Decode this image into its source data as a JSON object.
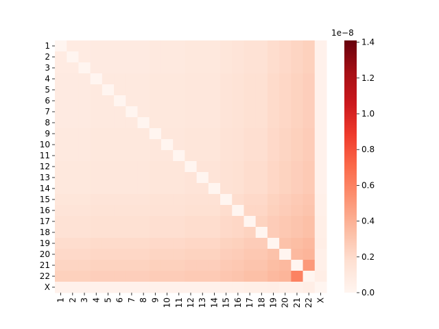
{
  "chart_data": {
    "type": "heatmap",
    "xcategories": [
      "1",
      "2",
      "3",
      "4",
      "5",
      "6",
      "7",
      "8",
      "9",
      "10",
      "11",
      "12",
      "13",
      "14",
      "15",
      "16",
      "17",
      "18",
      "19",
      "20",
      "21",
      "22",
      "X"
    ],
    "ycategories": [
      "1",
      "2",
      "3",
      "4",
      "5",
      "6",
      "7",
      "8",
      "9",
      "10",
      "11",
      "12",
      "13",
      "14",
      "15",
      "16",
      "17",
      "18",
      "19",
      "20",
      "21",
      "22",
      "X"
    ],
    "values": [
      [
        0,
        0.08,
        0.08,
        0.09,
        0.09,
        0.09,
        0.09,
        0.09,
        0.1,
        0.1,
        0.1,
        0.11,
        0.11,
        0.11,
        0.13,
        0.14,
        0.16,
        0.16,
        0.19,
        0.21,
        0.23,
        0.25,
        0.03
      ],
      [
        0.08,
        0,
        0.08,
        0.09,
        0.09,
        0.09,
        0.09,
        0.09,
        0.1,
        0.1,
        0.1,
        0.11,
        0.11,
        0.11,
        0.13,
        0.14,
        0.16,
        0.16,
        0.19,
        0.21,
        0.23,
        0.25,
        0.03
      ],
      [
        0.08,
        0.08,
        0,
        0.09,
        0.09,
        0.09,
        0.09,
        0.09,
        0.1,
        0.1,
        0.1,
        0.11,
        0.11,
        0.11,
        0.13,
        0.14,
        0.16,
        0.16,
        0.19,
        0.21,
        0.23,
        0.25,
        0.03
      ],
      [
        0.09,
        0.09,
        0.09,
        0,
        0.1,
        0.1,
        0.1,
        0.1,
        0.11,
        0.11,
        0.11,
        0.12,
        0.12,
        0.12,
        0.14,
        0.15,
        0.17,
        0.17,
        0.2,
        0.22,
        0.24,
        0.26,
        0.03
      ],
      [
        0.09,
        0.09,
        0.09,
        0.1,
        0,
        0.1,
        0.1,
        0.1,
        0.11,
        0.11,
        0.11,
        0.12,
        0.12,
        0.12,
        0.14,
        0.15,
        0.17,
        0.17,
        0.2,
        0.22,
        0.24,
        0.26,
        0.03
      ],
      [
        0.09,
        0.09,
        0.09,
        0.1,
        0.1,
        0,
        0.1,
        0.1,
        0.11,
        0.11,
        0.11,
        0.12,
        0.12,
        0.12,
        0.14,
        0.15,
        0.17,
        0.17,
        0.2,
        0.22,
        0.24,
        0.26,
        0.03
      ],
      [
        0.09,
        0.09,
        0.09,
        0.1,
        0.1,
        0.1,
        0,
        0.1,
        0.11,
        0.11,
        0.11,
        0.12,
        0.12,
        0.12,
        0.14,
        0.15,
        0.17,
        0.17,
        0.2,
        0.22,
        0.24,
        0.26,
        0.03
      ],
      [
        0.09,
        0.09,
        0.09,
        0.1,
        0.1,
        0.1,
        0.1,
        0,
        0.11,
        0.11,
        0.11,
        0.12,
        0.12,
        0.12,
        0.14,
        0.15,
        0.17,
        0.17,
        0.2,
        0.22,
        0.24,
        0.26,
        0.03
      ],
      [
        0.1,
        0.1,
        0.1,
        0.11,
        0.11,
        0.11,
        0.11,
        0.11,
        0,
        0.12,
        0.12,
        0.13,
        0.13,
        0.13,
        0.15,
        0.16,
        0.18,
        0.18,
        0.21,
        0.23,
        0.25,
        0.27,
        0.03
      ],
      [
        0.1,
        0.1,
        0.1,
        0.11,
        0.11,
        0.11,
        0.11,
        0.11,
        0.12,
        0,
        0.12,
        0.13,
        0.13,
        0.13,
        0.15,
        0.16,
        0.18,
        0.18,
        0.21,
        0.23,
        0.25,
        0.27,
        0.03
      ],
      [
        0.1,
        0.1,
        0.1,
        0.11,
        0.11,
        0.11,
        0.11,
        0.11,
        0.12,
        0.12,
        0,
        0.13,
        0.13,
        0.13,
        0.15,
        0.16,
        0.18,
        0.18,
        0.21,
        0.23,
        0.25,
        0.27,
        0.03
      ],
      [
        0.11,
        0.11,
        0.11,
        0.12,
        0.12,
        0.12,
        0.12,
        0.12,
        0.13,
        0.13,
        0.13,
        0,
        0.14,
        0.14,
        0.16,
        0.17,
        0.19,
        0.19,
        0.22,
        0.24,
        0.26,
        0.28,
        0.03
      ],
      [
        0.11,
        0.11,
        0.11,
        0.12,
        0.12,
        0.12,
        0.12,
        0.12,
        0.13,
        0.13,
        0.13,
        0.14,
        0,
        0.14,
        0.16,
        0.17,
        0.19,
        0.19,
        0.22,
        0.24,
        0.26,
        0.28,
        0.03
      ],
      [
        0.11,
        0.11,
        0.11,
        0.12,
        0.12,
        0.12,
        0.12,
        0.12,
        0.13,
        0.13,
        0.13,
        0.14,
        0.14,
        0,
        0.16,
        0.17,
        0.19,
        0.19,
        0.22,
        0.24,
        0.26,
        0.28,
        0.03
      ],
      [
        0.13,
        0.13,
        0.13,
        0.14,
        0.14,
        0.14,
        0.14,
        0.14,
        0.15,
        0.15,
        0.15,
        0.16,
        0.16,
        0.16,
        0,
        0.19,
        0.21,
        0.21,
        0.24,
        0.26,
        0.28,
        0.3,
        0.04
      ],
      [
        0.14,
        0.14,
        0.14,
        0.15,
        0.15,
        0.15,
        0.15,
        0.15,
        0.16,
        0.16,
        0.16,
        0.17,
        0.17,
        0.17,
        0.19,
        0,
        0.22,
        0.22,
        0.25,
        0.27,
        0.29,
        0.31,
        0.04
      ],
      [
        0.16,
        0.16,
        0.16,
        0.17,
        0.17,
        0.17,
        0.17,
        0.17,
        0.18,
        0.18,
        0.18,
        0.19,
        0.19,
        0.19,
        0.21,
        0.22,
        0,
        0.24,
        0.27,
        0.29,
        0.31,
        0.33,
        0.05
      ],
      [
        0.16,
        0.16,
        0.16,
        0.17,
        0.17,
        0.17,
        0.17,
        0.17,
        0.18,
        0.18,
        0.18,
        0.19,
        0.19,
        0.19,
        0.21,
        0.22,
        0.24,
        0,
        0.27,
        0.29,
        0.31,
        0.33,
        0.05
      ],
      [
        0.19,
        0.19,
        0.19,
        0.2,
        0.2,
        0.2,
        0.2,
        0.2,
        0.21,
        0.21,
        0.21,
        0.22,
        0.22,
        0.22,
        0.24,
        0.25,
        0.27,
        0.27,
        0,
        0.32,
        0.34,
        0.36,
        0.06
      ],
      [
        0.21,
        0.21,
        0.21,
        0.22,
        0.22,
        0.22,
        0.22,
        0.22,
        0.23,
        0.23,
        0.23,
        0.24,
        0.24,
        0.24,
        0.26,
        0.27,
        0.29,
        0.29,
        0.32,
        0,
        0.36,
        0.38,
        0.04
      ],
      [
        0.23,
        0.23,
        0.23,
        0.24,
        0.24,
        0.24,
        0.24,
        0.24,
        0.25,
        0.25,
        0.25,
        0.26,
        0.26,
        0.26,
        0.28,
        0.29,
        0.31,
        0.31,
        0.34,
        0.36,
        0,
        0.5,
        0.04
      ],
      [
        0.25,
        0.25,
        0.25,
        0.26,
        0.26,
        0.26,
        0.26,
        0.26,
        0.27,
        0.27,
        0.27,
        0.28,
        0.28,
        0.28,
        0.3,
        0.31,
        0.33,
        0.33,
        0.36,
        0.38,
        0.6,
        0,
        0.06
      ],
      [
        0.03,
        0.03,
        0.03,
        0.03,
        0.03,
        0.03,
        0.03,
        0.03,
        0.03,
        0.03,
        0.03,
        0.03,
        0.03,
        0.03,
        0.04,
        0.04,
        0.05,
        0.05,
        0.06,
        0.04,
        0.04,
        0.06,
        0
      ]
    ],
    "zlim": [
      0,
      1.41
    ],
    "zticks": [
      {
        "value": 0,
        "label": "0.0"
      },
      0.2,
      0.4,
      0.6,
      0.8,
      {
        "value": 1,
        "label": "1.0"
      },
      1.2,
      1.4
    ],
    "colorbar_offset": "1e−8",
    "colorscale": [
      "#fff5f0",
      "#fee0d2",
      "#fcbba1",
      "#fc9272",
      "#fb6a4a",
      "#ef3b2c",
      "#cb181d",
      "#a50f15",
      "#67000d"
    ]
  }
}
